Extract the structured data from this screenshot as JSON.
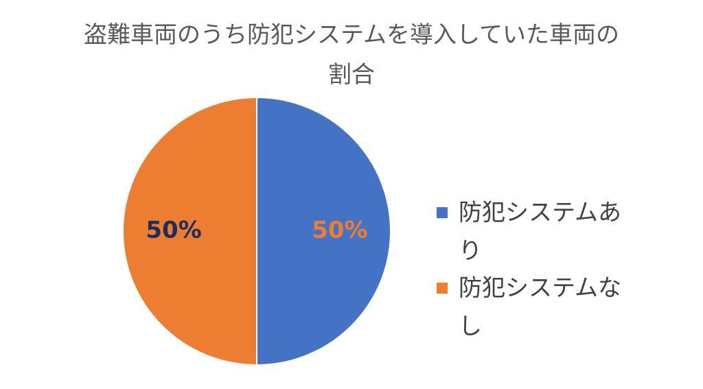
{
  "chart_data": {
    "type": "pie",
    "title": "盗難車両のうち防犯システムを導入していた車両の割合",
    "categories": [
      "防犯システムあり",
      "防犯システムなし"
    ],
    "values": [
      50,
      50
    ],
    "value_labels": [
      "50%",
      "50%"
    ],
    "colors": [
      "#4472c4",
      "#ed7d31"
    ],
    "label_colors": [
      "#ed7d31",
      "#1f2d5a"
    ],
    "legend": "right"
  }
}
